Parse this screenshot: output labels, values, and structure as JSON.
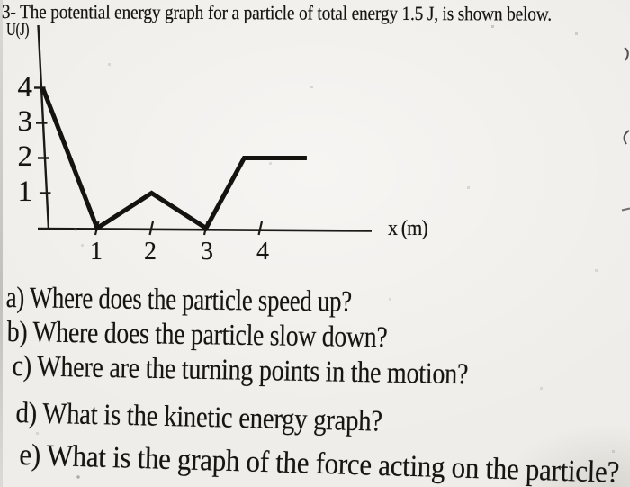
{
  "document": {
    "title": "3- The potential energy graph for a particle of total energy 1.5 J, is shown below."
  },
  "chart_data": {
    "type": "line",
    "description": "Piecewise-linear potential energy U versus position x for a particle of total energy 1.5 J",
    "xlabel": "x (m)",
    "ylabel": "U(J)",
    "xlim": [
      0,
      6
    ],
    "ylim": [
      0,
      4.6
    ],
    "xticks": [
      1,
      2,
      3,
      4
    ],
    "yticks": [
      1,
      2,
      3,
      4
    ],
    "xtick_labels": [
      "1",
      "2",
      "3",
      "4"
    ],
    "ytick_labels_top_to_bottom": [
      "4",
      "3",
      "2",
      "1"
    ],
    "grid": false,
    "legend": "none",
    "total_energy_J": 1.5,
    "series": [
      {
        "name": "U(x) potential energy (J)",
        "points": [
          [
            0,
            4
          ],
          [
            1,
            0
          ],
          [
            2,
            1
          ],
          [
            3,
            0
          ],
          [
            3.7,
            2
          ],
          [
            4.85,
            2
          ]
        ]
      }
    ]
  },
  "questions": [
    "a) Where does the particle speed up?",
    "b) Where does the particle slow down?",
    "c) Where are the turning points in the motion?",
    "d) What is the kinetic energy graph?",
    "e) What is the graph of the force acting on the particle?"
  ]
}
